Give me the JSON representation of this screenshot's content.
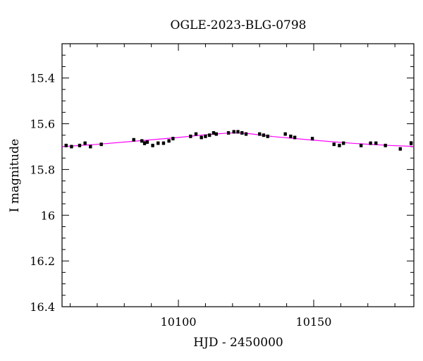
{
  "chart_data": {
    "type": "scatter",
    "title": "OGLE-2023-BLG-0798",
    "xlabel": "HJD - 2450000",
    "ylabel": "I magnitude",
    "xlim": [
      10057,
      10187
    ],
    "ylim": [
      16.4,
      15.25
    ],
    "y_inverted": true,
    "grid": false,
    "x_major_ticks": [
      10100,
      10150
    ],
    "x_tick_labels": [
      "10100",
      "10150"
    ],
    "y_major_ticks": [
      15.4,
      15.6,
      15.8,
      16.0,
      16.2,
      16.4
    ],
    "y_tick_labels": [
      "15.4",
      "15.6",
      "15.8",
      "16",
      "16.2",
      "16.4"
    ],
    "marker_color": "#000000",
    "model_color": "#ff00ff",
    "series": [
      {
        "kind": "points",
        "x": [
          10058.5,
          10060.5,
          10063.5,
          10065.5,
          10067.5,
          10071.5,
          10083.5,
          10086.5,
          10087.5,
          10088.5,
          10090.5,
          10092.5,
          10094.5,
          10096.5,
          10098,
          10104.5,
          10106.5,
          10108.5,
          10110,
          10111.5,
          10113,
          10114,
          10118.5,
          10120.5,
          10122,
          10123.5,
          10125,
          10130,
          10131.5,
          10133,
          10139.5,
          10141.5,
          10143,
          10149.5,
          10157.5,
          10159.5,
          10161,
          10167.5,
          10171,
          10173,
          10176.5,
          10182,
          10186
        ],
        "y": [
          15.695,
          15.7,
          15.695,
          15.685,
          15.7,
          15.69,
          15.67,
          15.675,
          15.685,
          15.68,
          15.695,
          15.685,
          15.685,
          15.675,
          15.665,
          15.655,
          15.645,
          15.66,
          15.655,
          15.65,
          15.64,
          15.645,
          15.64,
          15.635,
          15.635,
          15.64,
          15.645,
          15.645,
          15.65,
          15.655,
          15.645,
          15.655,
          15.66,
          15.665,
          15.69,
          15.695,
          15.685,
          15.695,
          15.685,
          15.685,
          15.695,
          15.71,
          15.685
        ],
        "errors": [
          0.006,
          0.006,
          0.006,
          0.006,
          0.006,
          0.006,
          0.006,
          0.006,
          0.007,
          0.006,
          0.006,
          0.006,
          0.006,
          0.006,
          0.006,
          0.006,
          0.006,
          0.006,
          0.006,
          0.006,
          0.006,
          0.006,
          0.006,
          0.006,
          0.006,
          0.006,
          0.006,
          0.006,
          0.006,
          0.006,
          0.006,
          0.006,
          0.006,
          0.006,
          0.006,
          0.006,
          0.006,
          0.006,
          0.006,
          0.006,
          0.006,
          0.006,
          0.007
        ]
      },
      {
        "kind": "line",
        "x": [
          10057,
          10070,
          10085,
          10100,
          10110,
          10118,
          10122,
          10126,
          10135,
          10150,
          10165,
          10178,
          10187
        ],
        "y": [
          15.7,
          15.69,
          15.675,
          15.66,
          15.648,
          15.641,
          15.64,
          15.643,
          15.656,
          15.672,
          15.686,
          15.695,
          15.699
        ]
      }
    ]
  }
}
